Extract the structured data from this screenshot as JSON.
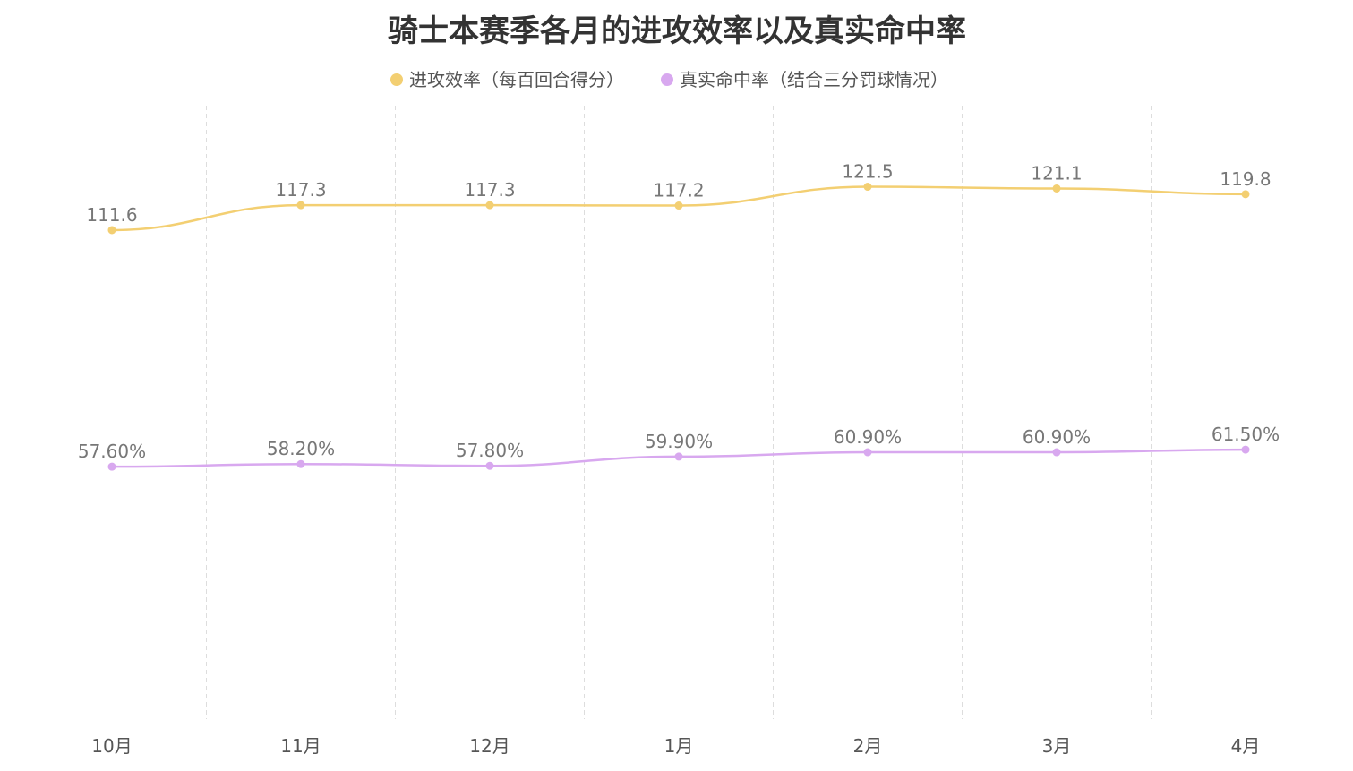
{
  "chart_data": {
    "type": "line",
    "title": "骑士本赛季各月的进攻效率以及真实命中率",
    "categories": [
      "10月",
      "11月",
      "12月",
      "1月",
      "2月",
      "3月",
      "4月"
    ],
    "ylim": [
      0,
      140
    ],
    "grid": "vertical-dashed",
    "legend_position": "top-center",
    "series": [
      {
        "name": "进攻效率（每百回合得分）",
        "color": "#f3cf72",
        "values": [
          111.6,
          117.3,
          117.3,
          117.2,
          121.5,
          121.1,
          119.8
        ],
        "labels": [
          "111.6",
          "117.3",
          "117.3",
          "117.2",
          "121.5",
          "121.1",
          "119.8"
        ]
      },
      {
        "name": "真实命中率（结合三分罚球情况）",
        "color": "#d8a8ef",
        "values": [
          57.6,
          58.2,
          57.8,
          59.9,
          60.9,
          60.9,
          61.5
        ],
        "labels": [
          "57.60%",
          "58.20%",
          "57.80%",
          "59.90%",
          "60.90%",
          "60.90%",
          "61.50%"
        ]
      }
    ]
  }
}
